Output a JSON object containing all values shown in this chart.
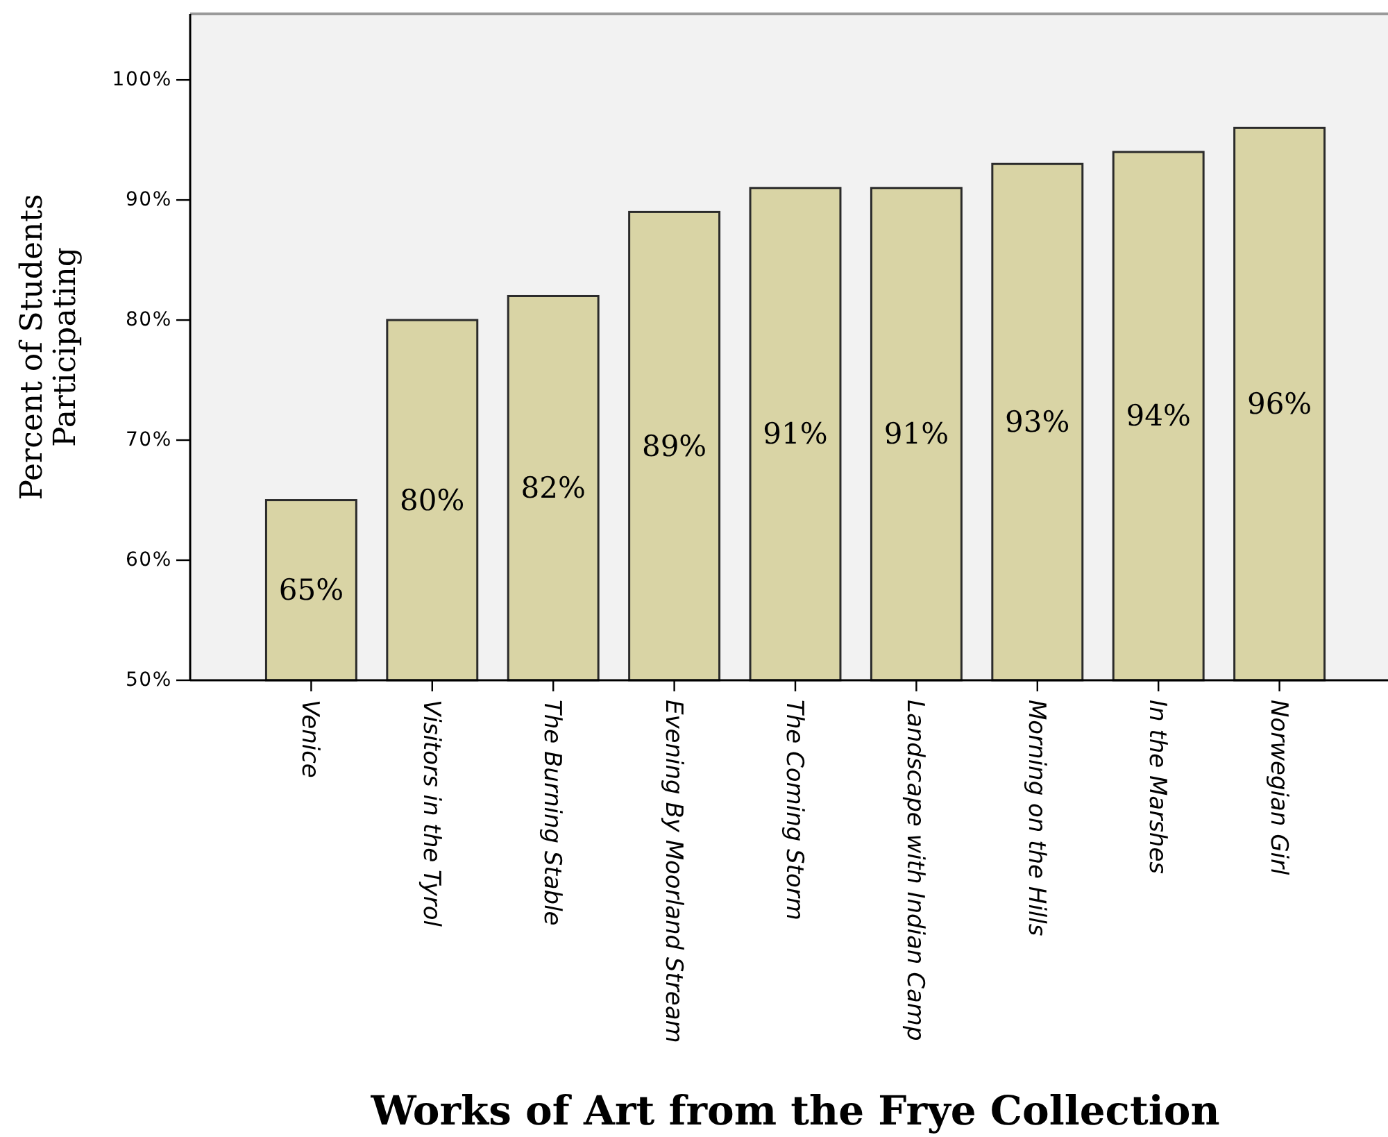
{
  "chart_data": {
    "type": "bar",
    "xlabel": "Works of Art from the Frye Collection",
    "ylabel": "Percent of Students Participating",
    "categories": [
      "Venice",
      "Visitors in the Tyrol",
      "The Burning Stable",
      "Evening By Moorland Stream",
      "The Coming Storm",
      "Landscape with Indian Camp",
      "Morning on the Hills",
      "In the Marshes",
      "Norwegian Girl"
    ],
    "values": [
      65,
      80,
      82,
      89,
      91,
      91,
      93,
      94,
      96
    ],
    "value_labels": [
      "65%",
      "80%",
      "82%",
      "89%",
      "91%",
      "91%",
      "93%",
      "94%",
      "96%"
    ],
    "color": "#d9d4a5",
    "ylim": [
      50,
      105.5
    ],
    "yticks": [
      {
        "value": 50,
        "label": "50%"
      },
      {
        "value": 60,
        "label": "60%"
      },
      {
        "value": 70,
        "label": "70%"
      },
      {
        "value": 80,
        "label": "80%"
      },
      {
        "value": 90,
        "label": "90%"
      },
      {
        "value": 100,
        "label": "100%"
      }
    ]
  }
}
